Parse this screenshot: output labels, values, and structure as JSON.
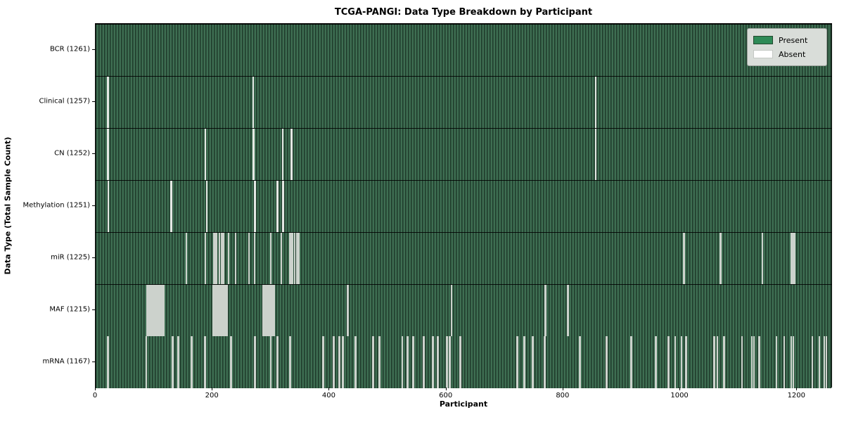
{
  "title": "TCGA-PANGI: Data Type Breakdown by Participant",
  "xlabel": "Participant",
  "ylabel": "Data Type (Total Sample Count)",
  "legend": {
    "present_label": "Present",
    "absent_label": "Absent"
  },
  "colors": {
    "present_swatch": "#2e8b57",
    "absent_swatch": "#ffffff",
    "bar_fill": "#3e6e52",
    "bar_edge": "#1f3b2b",
    "absent_stripe": "#ccd2cc",
    "legend_bg": "#d9ddd9"
  },
  "chart_data": {
    "type": "heatmap",
    "title": "TCGA-PANGI: Data Type Breakdown by Participant",
    "xlabel": "Participant",
    "ylabel": "Data Type (Total Sample Count)",
    "x_range": [
      0,
      1261
    ],
    "x_ticks": [
      0,
      200,
      400,
      600,
      800,
      1000,
      1200
    ],
    "legend_entries": [
      "Present",
      "Absent"
    ],
    "legend_position": "upper right",
    "grid": false,
    "rows": [
      {
        "name": "BCR",
        "label": "BCR (1261)",
        "present_count": 1261,
        "absent_count": 0,
        "absent_positions": []
      },
      {
        "name": "Clinical",
        "label": "Clinical (1257)",
        "present_count": 1257,
        "absent_count": 4,
        "absent_positions": [
          19,
          20,
          268,
          854
        ]
      },
      {
        "name": "CN",
        "label": "CN (1252)",
        "present_count": 1252,
        "absent_count": 9,
        "absent_positions": [
          19,
          20,
          187,
          268,
          269,
          319,
          333,
          334,
          854
        ]
      },
      {
        "name": "Methylation",
        "label": "Methylation (1251)",
        "present_count": 1251,
        "absent_count": 10,
        "absent_positions": [
          20,
          128,
          129,
          189,
          271,
          272,
          309,
          310,
          319,
          320
        ]
      },
      {
        "name": "miR",
        "label": "miR (1225)",
        "present_count": 1225,
        "absent_count": 36,
        "absent_positions": [
          154,
          187,
          201,
          202,
          205,
          206,
          210,
          211,
          214,
          217,
          218,
          226,
          238,
          261,
          271,
          298,
          316,
          331,
          332,
          335,
          336,
          339,
          343,
          344,
          347,
          1005,
          1006,
          1067,
          1068,
          1139,
          1140,
          1189,
          1190,
          1193,
          1194,
          1195
        ]
      },
      {
        "name": "MAF",
        "label": "MAF (1215)",
        "present_count": 1215,
        "absent_count": 46,
        "absent_positions": [
          87,
          89,
          91,
          93,
          95,
          97,
          99,
          101,
          103,
          105,
          107,
          109,
          111,
          113,
          115,
          200,
          202,
          204,
          206,
          208,
          210,
          212,
          214,
          216,
          218,
          220,
          222,
          224,
          285,
          287,
          289,
          291,
          293,
          295,
          297,
          299,
          301,
          303,
          305,
          430,
          431,
          608,
          768,
          769,
          806,
          807
        ]
      },
      {
        "name": "mRNA",
        "label": "mRNA (1167)",
        "present_count": 1167,
        "absent_count": 94,
        "absent_positions": [
          19,
          20,
          85,
          86,
          130,
          131,
          140,
          141,
          163,
          164,
          185,
          186,
          230,
          231,
          271,
          272,
          298,
          299,
          309,
          310,
          331,
          332,
          388,
          389,
          406,
          407,
          415,
          416,
          421,
          422,
          443,
          444,
          473,
          474,
          484,
          485,
          523,
          524,
          532,
          533,
          542,
          543,
          560,
          561,
          575,
          576,
          584,
          585,
          599,
          600,
          604,
          605,
          622,
          623,
          720,
          721,
          732,
          733,
          746,
          747,
          767,
          768,
          827,
          828,
          872,
          873,
          915,
          916,
          957,
          958,
          978,
          979,
          990,
          1001,
          1008,
          1009,
          1057,
          1058,
          1063,
          1073,
          1074,
          1105,
          1122,
          1125,
          1134,
          1135,
          1164,
          1177,
          1189,
          1193,
          1225,
          1237,
          1245,
          1249
        ]
      }
    ]
  }
}
